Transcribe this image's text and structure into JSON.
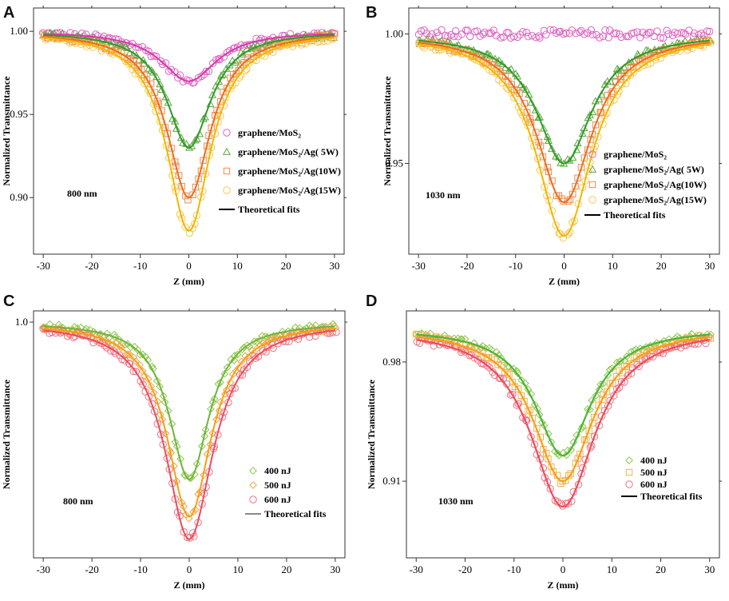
{
  "figure": {
    "panels": [
      "A",
      "B",
      "C",
      "D"
    ]
  },
  "chart_data": [
    {
      "panel": "A",
      "type": "scatter",
      "title": "",
      "annotation": "800 nm",
      "xlabel": "Z (mm)",
      "ylabel": "Normalized Transmittance",
      "xlim": [
        -32,
        32
      ],
      "ylim": [
        0.866,
        1.014
      ],
      "xticks": [
        -30,
        -20,
        -10,
        0,
        10,
        20,
        30
      ],
      "xtick_labels": [
        "-30",
        "-20",
        "-10",
        "0",
        "10",
        "20",
        "30"
      ],
      "yticks": [
        1.0,
        0.95,
        0.9
      ],
      "ytick_labels": [
        "1.00",
        "0.95",
        "0.90"
      ],
      "legend": {
        "position": "center-right",
        "fit_label": "Theoretical fits",
        "fit_color": "#000000"
      },
      "series": [
        {
          "name": "graphene/MoS₂",
          "marker": "circle",
          "color": "#e060c0",
          "fit_color": "#d23ba8",
          "dip": 0.03,
          "width": 7
        },
        {
          "name": "graphene/MoS₂/Ag( 5W)",
          "marker": "triangle",
          "color": "#5aa83a",
          "fit_color": "#2f9a2a",
          "dip": 0.07,
          "width": 5.5
        },
        {
          "name": "graphene/MoS₂/Ag(10W)",
          "marker": "square",
          "color": "#f08a50",
          "fit_color": "#f06a18",
          "dip": 0.1,
          "width": 5.5
        },
        {
          "name": "graphene/MoS₂/Ag(15W)",
          "marker": "circle",
          "color": "#f5c850",
          "fit_color": "#f5b400",
          "dip": 0.12,
          "width": 5.5
        }
      ]
    },
    {
      "panel": "B",
      "type": "scatter",
      "title": "",
      "annotation": "1030 nm",
      "xlabel": "Z (mm)",
      "ylabel": "Normalized Transmittance",
      "xlim": [
        -32,
        32
      ],
      "ylim": [
        0.915,
        1.01
      ],
      "xticks": [
        -30,
        -20,
        -10,
        0,
        10,
        20,
        30
      ],
      "xtick_labels": [
        "-30",
        "-20",
        "-10",
        "0",
        "10",
        "20",
        "30"
      ],
      "yticks": [
        1.0,
        0.95
      ],
      "ytick_labels": [
        "1.00",
        "0.95"
      ],
      "legend": {
        "position": "center-right",
        "fit_label": "Theoretical fits",
        "fit_color": "#000000"
      },
      "series": [
        {
          "name": "graphene/MoS₂",
          "marker": "circle",
          "color": "#e060c0",
          "fit_color": "",
          "dip": 0.0,
          "width": 7
        },
        {
          "name": "graphene/MoS₂/Ag( 5W)",
          "marker": "triangle",
          "color": "#5aa83a",
          "fit_color": "#2f9a2a",
          "dip": 0.05,
          "width": 7
        },
        {
          "name": "graphene/MoS₂/Ag(10W)",
          "marker": "square",
          "color": "#f08a50",
          "fit_color": "#f06a18",
          "dip": 0.065,
          "width": 7
        },
        {
          "name": "graphene/MoS₂/Ag(15W)",
          "marker": "circle",
          "color": "#f5c850",
          "fit_color": "#f5b400",
          "dip": 0.078,
          "width": 7
        }
      ]
    },
    {
      "panel": "C",
      "type": "scatter",
      "title": "",
      "annotation": "800 nm",
      "xlabel": "Z (mm)",
      "ylabel": "Normalized Transmittance",
      "xlim": [
        -32,
        32
      ],
      "ylim": [
        0.37,
        1.03
      ],
      "xticks": [
        -30,
        -20,
        -10,
        0,
        10,
        20,
        30
      ],
      "xtick_labels": [
        "-30",
        "-20",
        "-10",
        "0",
        "10",
        "20",
        "30"
      ],
      "yticks": [
        1.0
      ],
      "ytick_labels": [
        "1.0"
      ],
      "legend": {
        "position": "center-right",
        "fit_label": "Theoretical fits",
        "fit_color": "#888888"
      },
      "series": [
        {
          "name": "400 nJ",
          "marker": "diamond",
          "color": "#8cc84a",
          "fit_color": "#70b43a",
          "dip": 0.42,
          "width": 5
        },
        {
          "name": "500 nJ",
          "marker": "diamond",
          "color": "#f5a040",
          "fit_color": "#f5a010",
          "dip": 0.52,
          "width": 5.5
        },
        {
          "name": "600 nJ",
          "marker": "circle",
          "color": "#f07080",
          "fit_color": "#f04a5a",
          "dip": 0.58,
          "width": 6
        }
      ]
    },
    {
      "panel": "D",
      "type": "scatter",
      "title": "",
      "annotation": "1030 nm",
      "xlabel": "Z (mm)",
      "ylabel": "Normalized Transmittance",
      "xlim": [
        -32,
        32
      ],
      "ylim": [
        0.865,
        1.01
      ],
      "xticks": [
        -30,
        -20,
        -10,
        0,
        10,
        20,
        30
      ],
      "xtick_labels": [
        "-30",
        "-20",
        "-10",
        "0",
        "10",
        "20",
        "30"
      ],
      "yticks": [
        0.98,
        0.91
      ],
      "ytick_labels": [
        "0.98",
        "0.91"
      ],
      "legend": {
        "position": "center-right",
        "fit_label": "Theoretical fits",
        "fit_color": "#000000"
      },
      "series": [
        {
          "name": "400 nJ",
          "marker": "diamond",
          "color": "#8cc84a",
          "fit_color": "#4cb43a",
          "dip": 0.075,
          "width": 7
        },
        {
          "name": "500 nJ",
          "marker": "square",
          "color": "#f5b050",
          "fit_color": "#f5a010",
          "dip": 0.09,
          "width": 7.5
        },
        {
          "name": "600 nJ",
          "marker": "circle",
          "color": "#f07080",
          "fit_color": "#f04a5a",
          "dip": 0.105,
          "width": 8
        }
      ]
    }
  ]
}
